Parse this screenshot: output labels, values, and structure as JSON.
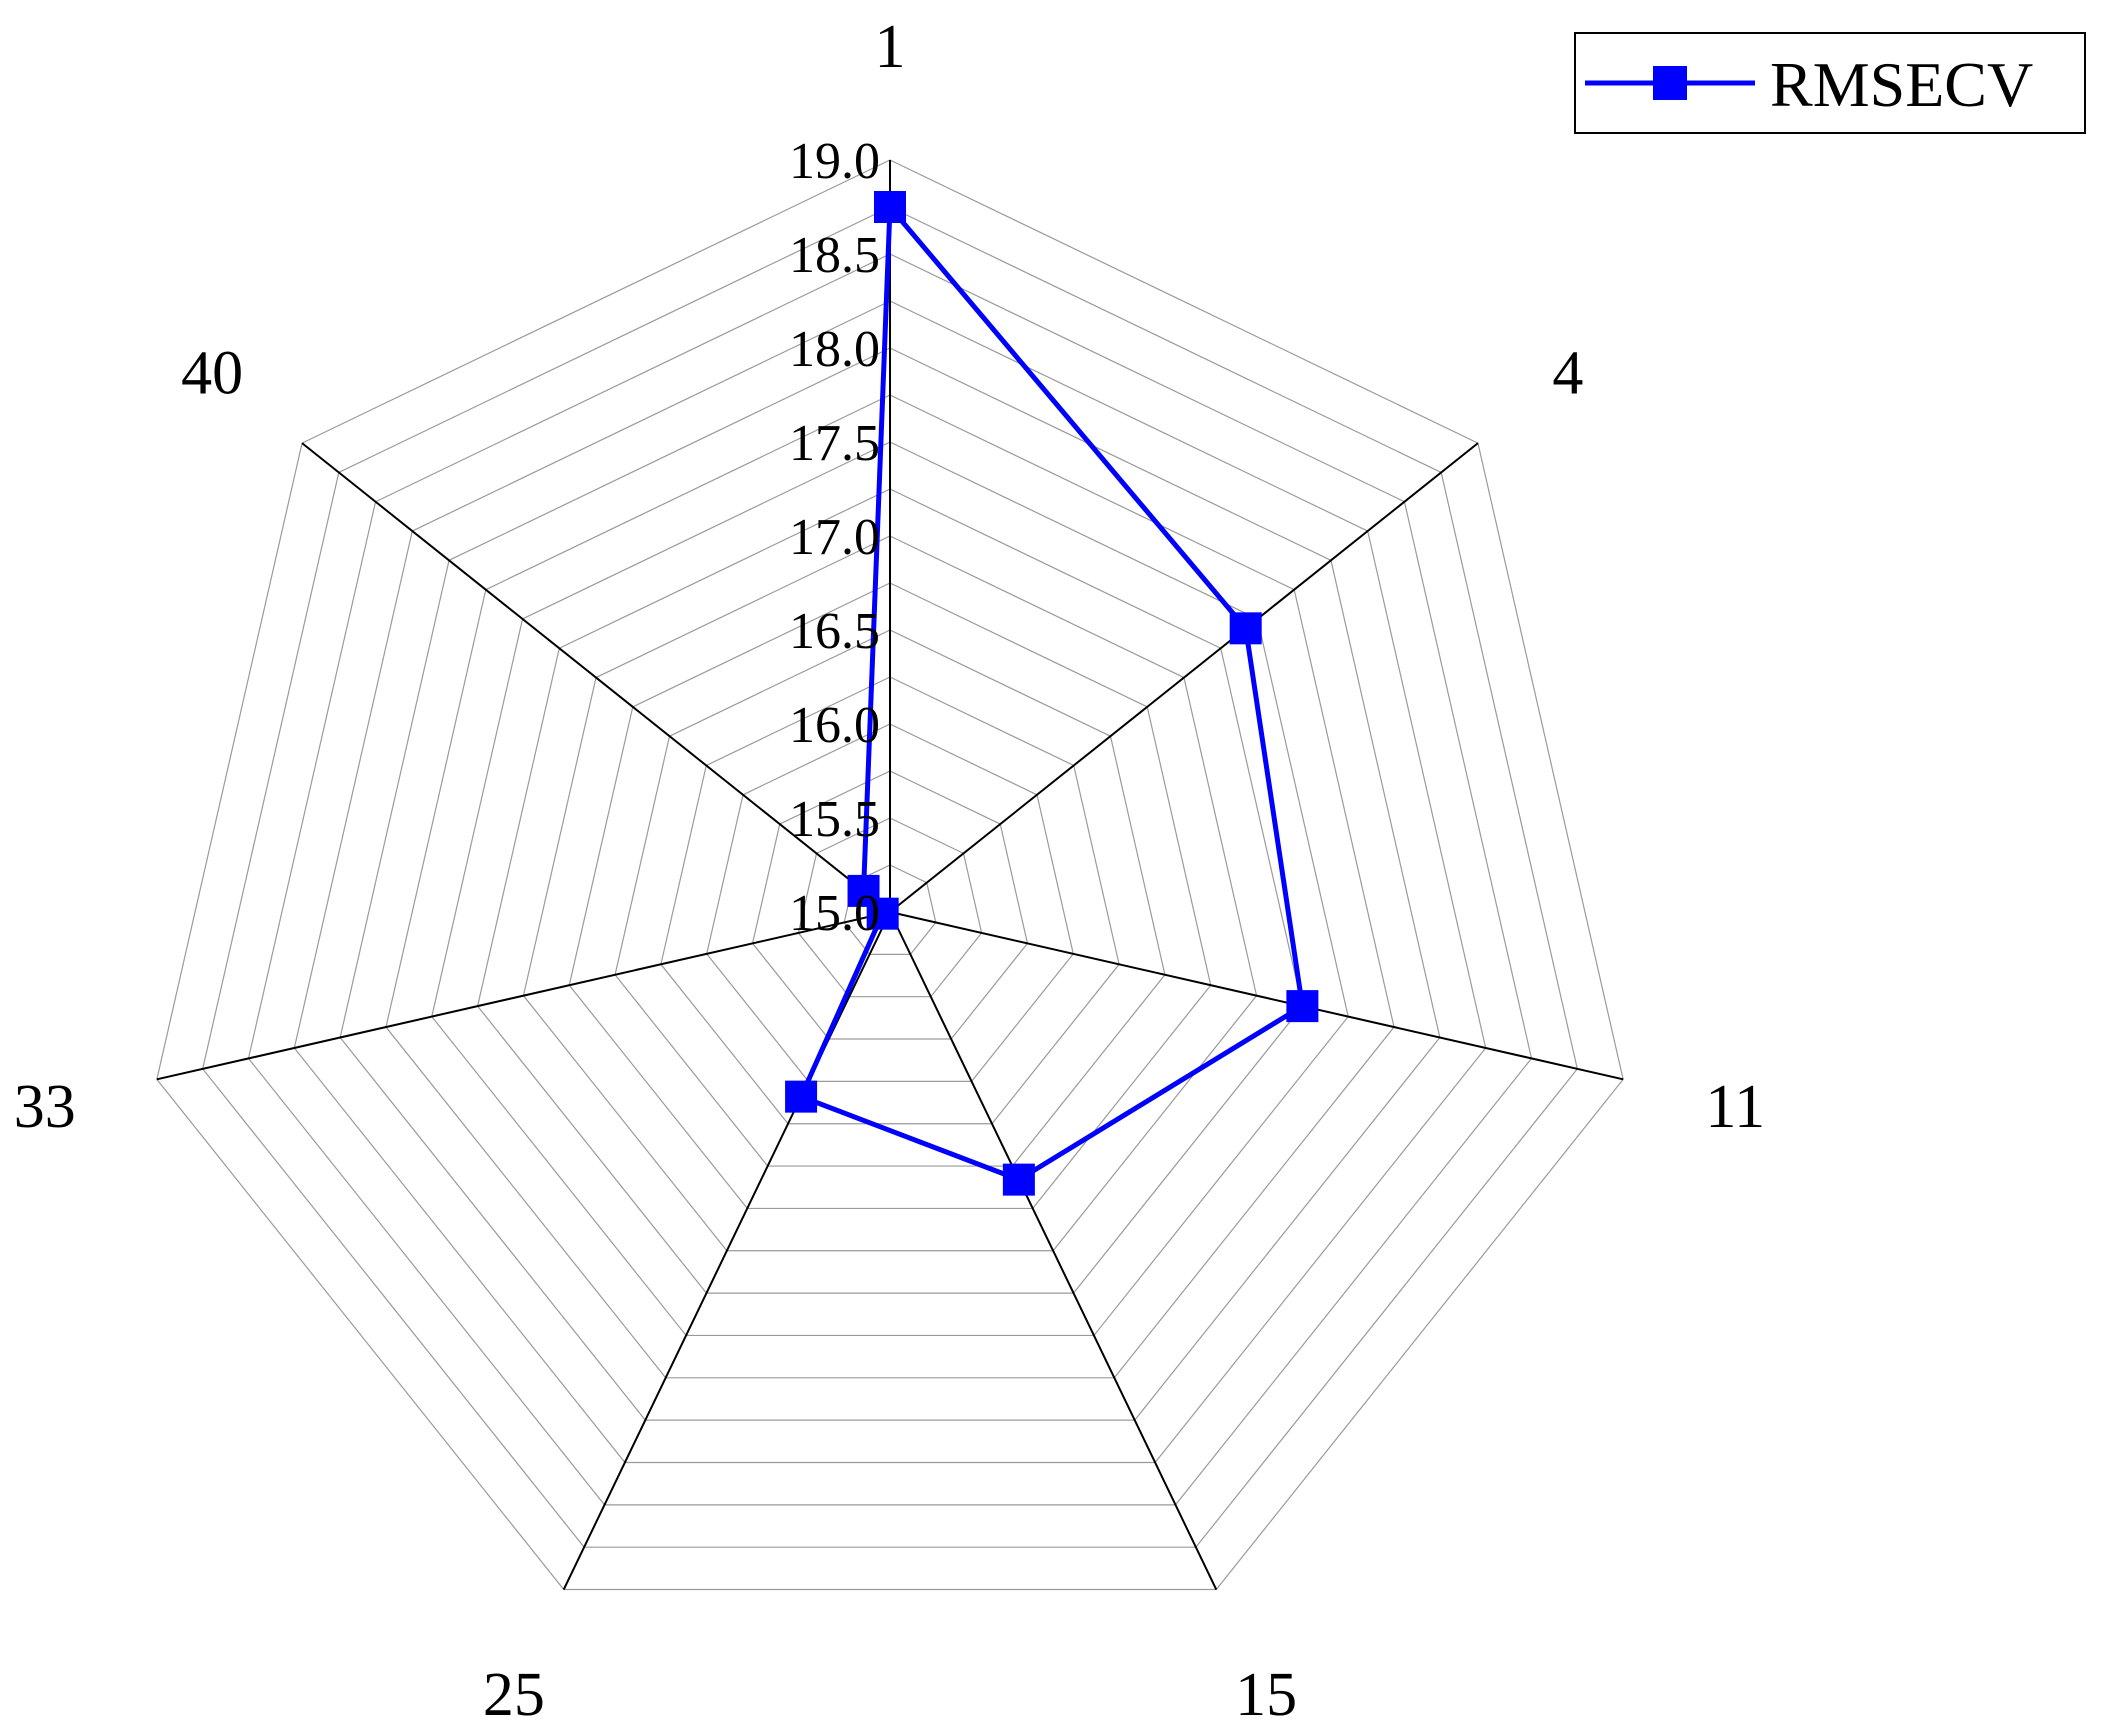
{
  "chart_data": {
    "type": "radar",
    "categories": [
      "1",
      "4",
      "11",
      "15",
      "25",
      "33",
      "40"
    ],
    "series": [
      {
        "name": "RMSECV",
        "values": [
          18.75,
          17.42,
          17.25,
          16.58,
          16.09,
          15.04,
          15.18
        ],
        "color": "#0000ff",
        "marker": "square"
      }
    ],
    "radial_ticks": [
      "15.0",
      "15.5",
      "16.0",
      "16.5",
      "17.0",
      "17.5",
      "18.0",
      "18.5",
      "19.0"
    ],
    "rmin": 15.0,
    "rmax": 19.0,
    "grid": true,
    "legend_position": "top-right"
  }
}
